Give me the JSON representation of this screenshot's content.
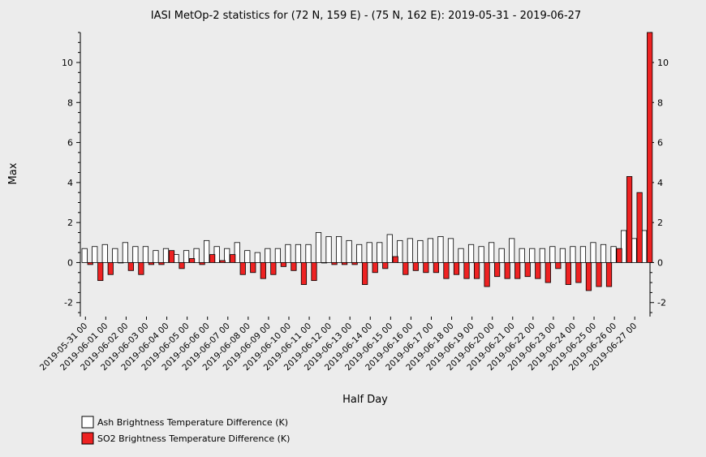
{
  "chart_data": {
    "type": "bar",
    "title": "IASI MetOp-2 statistics for (72 N, 159 E) - (75 N, 162 E): 2019-05-31 - 2019-06-27",
    "xlabel": "Half Day",
    "ylabel": "Max",
    "ylim": [
      -2.7,
      11.5
    ],
    "yticks": [
      -2,
      0,
      2,
      4,
      6,
      8,
      10
    ],
    "grid": false,
    "legend_position": "bottom-left",
    "categories": [
      "2019-05-31 00",
      "2019-05-31 12",
      "2019-06-01 00",
      "2019-06-01 12",
      "2019-06-02 00",
      "2019-06-02 12",
      "2019-06-03 00",
      "2019-06-03 12",
      "2019-06-04 00",
      "2019-06-04 12",
      "2019-06-05 00",
      "2019-06-05 12",
      "2019-06-06 00",
      "2019-06-06 12",
      "2019-06-07 00",
      "2019-06-07 12",
      "2019-06-08 00",
      "2019-06-08 12",
      "2019-06-09 00",
      "2019-06-09 12",
      "2019-06-10 00",
      "2019-06-10 12",
      "2019-06-11 00",
      "2019-06-11 12",
      "2019-06-12 00",
      "2019-06-12 12",
      "2019-06-13 00",
      "2019-06-13 12",
      "2019-06-14 00",
      "2019-06-14 12",
      "2019-06-15 00",
      "2019-06-15 12",
      "2019-06-16 00",
      "2019-06-16 12",
      "2019-06-17 00",
      "2019-06-17 12",
      "2019-06-18 00",
      "2019-06-18 12",
      "2019-06-19 00",
      "2019-06-19 12",
      "2019-06-20 00",
      "2019-06-20 12",
      "2019-06-21 00",
      "2019-06-21 12",
      "2019-06-22 00",
      "2019-06-22 12",
      "2019-06-23 00",
      "2019-06-23 12",
      "2019-06-24 00",
      "2019-06-24 12",
      "2019-06-25 00",
      "2019-06-25 12",
      "2019-06-26 00",
      "2019-06-26 12",
      "2019-06-27 00",
      "2019-06-27 12"
    ],
    "tick_labels": [
      "2019-05-31 00",
      "2019-06-01 00",
      "2019-06-02 00",
      "2019-06-03 00",
      "2019-06-04 00",
      "2019-06-05 00",
      "2019-06-06 00",
      "2019-06-07 00",
      "2019-06-08 00",
      "2019-06-09 00",
      "2019-06-10 00",
      "2019-06-11 00",
      "2019-06-12 00",
      "2019-06-13 00",
      "2019-06-14 00",
      "2019-06-15 00",
      "2019-06-16 00",
      "2019-06-17 00",
      "2019-06-18 00",
      "2019-06-19 00",
      "2019-06-20 00",
      "2019-06-21 00",
      "2019-06-22 00",
      "2019-06-23 00",
      "2019-06-24 00",
      "2019-06-25 00",
      "2019-06-26 00",
      "2019-06-27 00"
    ],
    "series": [
      {
        "name": "Ash Brightness Temperature Difference (K)",
        "color": "#ffffff",
        "values": [
          0.7,
          0.8,
          0.9,
          0.7,
          1.0,
          0.8,
          0.8,
          0.6,
          0.7,
          0.4,
          0.6,
          0.7,
          1.1,
          0.8,
          0.7,
          1.0,
          0.6,
          0.5,
          0.7,
          0.7,
          0.9,
          0.9,
          0.9,
          1.5,
          1.3,
          1.3,
          1.1,
          0.9,
          1.0,
          1.0,
          1.4,
          1.1,
          1.2,
          1.1,
          1.2,
          1.3,
          1.2,
          0.7,
          0.9,
          0.8,
          1.0,
          0.7,
          1.2,
          0.7,
          0.7,
          0.7,
          0.8,
          0.7,
          0.8,
          0.8,
          1.0,
          0.9,
          0.8,
          1.6,
          1.2,
          1.6
        ]
      },
      {
        "name": "SO2 Brightness Temperature Difference (K)",
        "color": "#ee2222",
        "values": [
          -0.1,
          -0.9,
          -0.6,
          0.0,
          -0.4,
          -0.6,
          -0.1,
          -0.1,
          0.6,
          -0.3,
          0.2,
          -0.1,
          0.4,
          0.1,
          0.4,
          -0.6,
          -0.5,
          -0.8,
          -0.6,
          -0.2,
          -0.4,
          -1.1,
          -0.9,
          0.0,
          -0.1,
          -0.1,
          -0.1,
          -1.1,
          -0.5,
          -0.3,
          0.3,
          -0.6,
          -0.4,
          -0.5,
          -0.5,
          -0.8,
          -0.6,
          -0.8,
          -0.8,
          -1.2,
          -0.7,
          -0.8,
          -0.8,
          -0.7,
          -0.8,
          -1.0,
          -0.3,
          -1.1,
          -1.0,
          -1.4,
          -1.2,
          -1.2,
          0.7,
          4.3,
          3.5,
          11.5
        ]
      }
    ]
  }
}
